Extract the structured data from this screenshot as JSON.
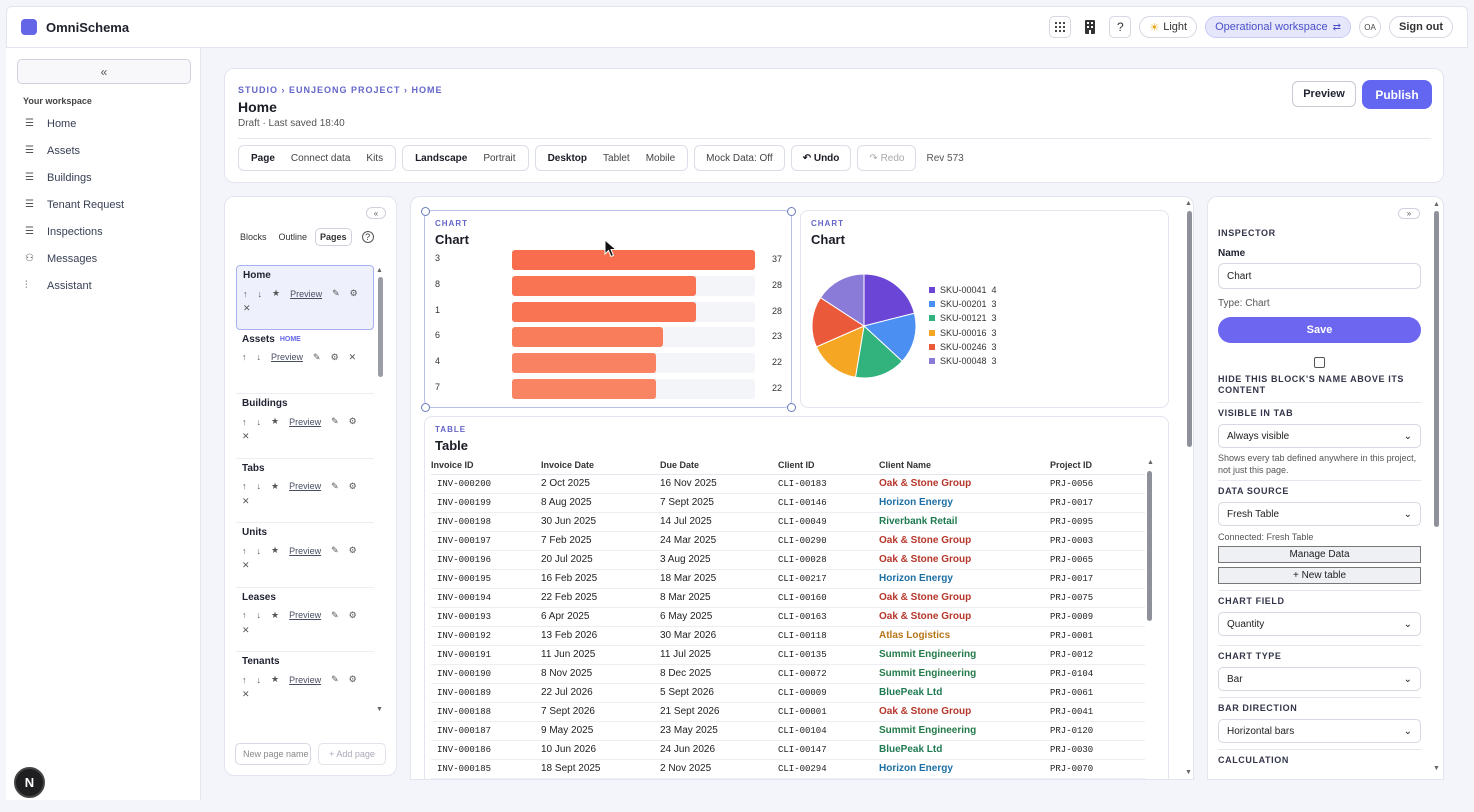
{
  "app": {
    "brand": "OmniSchema",
    "light_label": "Light",
    "workspace_label": "Operational workspace",
    "avatar_initials": "OA",
    "sign_out": "Sign out",
    "help_label": "?"
  },
  "sidebar": {
    "collapse_label": "«",
    "section_label": "Your workspace",
    "items": [
      {
        "label": "Home",
        "icon": "list-icon"
      },
      {
        "label": "Assets",
        "icon": "list-icon"
      },
      {
        "label": "Buildings",
        "icon": "list-icon"
      },
      {
        "label": "Tenant Request",
        "icon": "list-icon"
      },
      {
        "label": "Inspections",
        "icon": "list-icon"
      },
      {
        "label": "Messages",
        "icon": "people-icon"
      },
      {
        "label": "Assistant",
        "icon": "bars-icon"
      }
    ]
  },
  "header": {
    "breadcrumb": "STUDIO › EUNJEONG PROJECT › HOME",
    "title": "Home",
    "subtitle": "Draft · Last saved 18:40",
    "preview": "Preview",
    "publish": "Publish",
    "mode_tabs": [
      "Page",
      "Connect data",
      "Kits"
    ],
    "orientation_tabs": [
      "Landscape",
      "Portrait"
    ],
    "device_tabs": [
      "Desktop",
      "Tablet",
      "Mobile"
    ],
    "mock_data": "Mock Data: Off",
    "undo": "↶ Undo",
    "redo": "↷ Redo",
    "revision": "Rev 573"
  },
  "left_panel": {
    "collapse_label": "«",
    "tabs": [
      "Blocks",
      "Outline",
      "Pages"
    ],
    "help": "?",
    "preview_label": "Preview",
    "pages": [
      {
        "name": "Home",
        "badge": ""
      },
      {
        "name": "Assets",
        "badge": "HOME"
      },
      {
        "name": "Buildings",
        "badge": ""
      },
      {
        "name": "Tabs",
        "badge": ""
      },
      {
        "name": "Units",
        "badge": ""
      },
      {
        "name": "Leases",
        "badge": ""
      },
      {
        "name": "Tenants",
        "badge": ""
      }
    ],
    "new_page_placeholder": "New page name",
    "add_page": "+ Add page"
  },
  "bar_card": {
    "kind": "CHART",
    "title": "Chart"
  },
  "pie_card": {
    "kind": "CHART",
    "title": "Chart"
  },
  "table_card": {
    "kind": "TABLE",
    "title": "Table",
    "columns": [
      "Invoice ID",
      "Invoice Date",
      "Due Date",
      "Client ID",
      "Client Name",
      "Project ID"
    ],
    "rows": [
      [
        "INV-000200",
        "2 Oct 2025",
        "16 Nov 2025",
        "CLI-00183",
        "Oak & Stone Group",
        "PRJ-0056"
      ],
      [
        "INV-000199",
        "8 Aug 2025",
        "7 Sept 2025",
        "CLI-00146",
        "Horizon Energy",
        "PRJ-0017"
      ],
      [
        "INV-000198",
        "30 Jun 2025",
        "14 Jul 2025",
        "CLI-00049",
        "Riverbank Retail",
        "PRJ-0095"
      ],
      [
        "INV-000197",
        "7 Feb 2025",
        "24 Mar 2025",
        "CLI-00290",
        "Oak & Stone Group",
        "PRJ-0003"
      ],
      [
        "INV-000196",
        "20 Jul 2025",
        "3 Aug 2025",
        "CLI-00028",
        "Oak & Stone Group",
        "PRJ-0065"
      ],
      [
        "INV-000195",
        "16 Feb 2025",
        "18 Mar 2025",
        "CLI-00217",
        "Horizon Energy",
        "PRJ-0017"
      ],
      [
        "INV-000194",
        "22 Feb 2025",
        "8 Mar 2025",
        "CLI-00160",
        "Oak & Stone Group",
        "PRJ-0075"
      ],
      [
        "INV-000193",
        "6 Apr 2025",
        "6 May 2025",
        "CLI-00163",
        "Oak & Stone Group",
        "PRJ-0009"
      ],
      [
        "INV-000192",
        "13 Feb 2026",
        "30 Mar 2026",
        "CLI-00118",
        "Atlas Logistics",
        "PRJ-0001"
      ],
      [
        "INV-000191",
        "11 Jun 2025",
        "11 Jul 2025",
        "CLI-00135",
        "Summit Engineering",
        "PRJ-0012"
      ],
      [
        "INV-000190",
        "8 Nov 2025",
        "8 Dec 2025",
        "CLI-00072",
        "Summit Engineering",
        "PRJ-0104"
      ],
      [
        "INV-000189",
        "22 Jul 2026",
        "5 Sept 2026",
        "CLI-00009",
        "BluePeak Ltd",
        "PRJ-0061"
      ],
      [
        "INV-000188",
        "7 Sept 2026",
        "21 Sept 2026",
        "CLI-00001",
        "Oak & Stone Group",
        "PRJ-0041"
      ],
      [
        "INV-000187",
        "9 May 2025",
        "23 May 2025",
        "CLI-00104",
        "Summit Engineering",
        "PRJ-0120"
      ],
      [
        "INV-000186",
        "10 Jun 2026",
        "24 Jun 2026",
        "CLI-00147",
        "BluePeak Ltd",
        "PRJ-0030"
      ],
      [
        "INV-000185",
        "18 Sept 2025",
        "2 Nov 2025",
        "CLI-00294",
        "Horizon Energy",
        "PRJ-0070"
      ]
    ],
    "client_colors": {
      "Oak & Stone Group": "#b6362a",
      "Horizon Energy": "#1d6fa3",
      "Riverbank Retail": "#1e7a4e",
      "Atlas Logistics": "#b8761b",
      "Summit Engineering": "#237a4a",
      "BluePeak Ltd": "#1f7a52"
    }
  },
  "inspector": {
    "collapse_label": "»",
    "section": "INSPECTOR",
    "name_label": "Name",
    "name_value": "Chart",
    "type_text": "Type: Chart",
    "save": "Save",
    "hide_name_label": "HIDE THIS BLOCK'S NAME ABOVE ITS CONTENT",
    "visible_in_tab_label": "VISIBLE IN TAB",
    "visible_in_tab_value": "Always visible",
    "visible_note": "Shows every tab defined anywhere in this project, not just this page.",
    "data_source_label": "DATA SOURCE",
    "data_source_value": "Fresh Table",
    "connected_text": "Connected: Fresh Table",
    "manage_data": "Manage Data",
    "new_table": "+ New table",
    "chart_field_label": "CHART FIELD",
    "chart_field_value": "Quantity",
    "chart_type_label": "CHART TYPE",
    "chart_type_value": "Bar",
    "bar_direction_label": "BAR DIRECTION",
    "bar_direction_value": "Horizontal bars",
    "calculation_label": "CALCULATION"
  },
  "chart_data": [
    {
      "type": "bar",
      "orientation": "horizontal",
      "title": "Chart",
      "categories": [
        "3",
        "8",
        "1",
        "6",
        "4",
        "7"
      ],
      "values": [
        37,
        28,
        28,
        23,
        22,
        22
      ],
      "xlim": [
        0,
        37
      ],
      "bar_color": "#f97a57",
      "grid": false
    },
    {
      "type": "pie",
      "title": "Chart",
      "labels": [
        "SKU-00041",
        "SKU-00201",
        "SKU-00121",
        "SKU-00016",
        "SKU-00246",
        "SKU-00048"
      ],
      "values": [
        4,
        3,
        3,
        3,
        3,
        3
      ],
      "colors": [
        "#6b46d6",
        "#4b8ff3",
        "#32b27d",
        "#f5a623",
        "#ea5a3a",
        "#8a7bd8"
      ],
      "legend": "right"
    }
  ]
}
